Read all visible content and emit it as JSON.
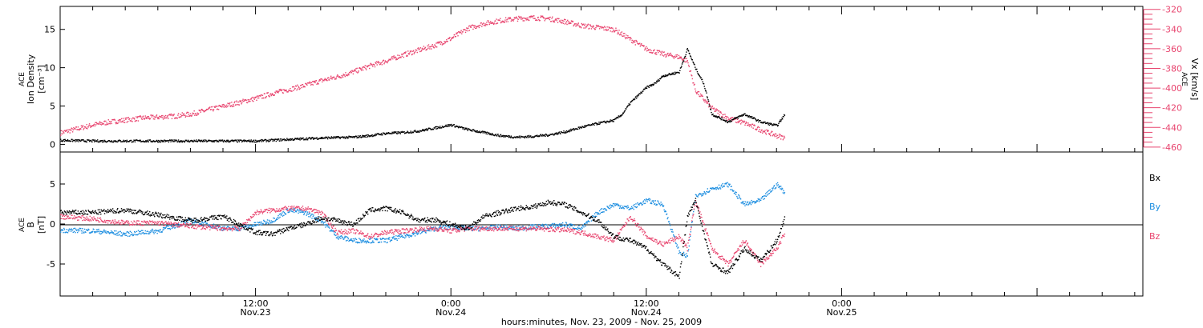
{
  "colors": {
    "black": "#000000",
    "pink": "#e8456f",
    "blue": "#1d8ee0"
  },
  "chart_data": [
    {
      "type": "scatter",
      "panel": "top",
      "ylabel_left": [
        "ACE",
        "Ion Density",
        "[cm⁻³]"
      ],
      "ylabel_right": [
        "ACE",
        "Vx [km/s]"
      ],
      "left_axis": {
        "ylim": [
          -1,
          18
        ],
        "ticks": [
          "0",
          "5",
          "10",
          "15"
        ],
        "tick_values": [
          0,
          5,
          10,
          15
        ]
      },
      "right_axis": {
        "ylim": [
          -465,
          -317
        ],
        "ticks": [
          "-320",
          "-340",
          "-360",
          "-380",
          "-400",
          "-420",
          "-440",
          "-460"
        ],
        "tick_values": [
          -320,
          -340,
          -360,
          -380,
          -400,
          -420,
          -440,
          -460
        ]
      },
      "series": [
        {
          "axis": "left",
          "color": "#000000",
          "points": [
            [
              0,
              0.6
            ],
            [
              2,
              0.5
            ],
            [
              4,
              0.5
            ],
            [
              6,
              0.5
            ],
            [
              8,
              0.5
            ],
            [
              10,
              0.5
            ],
            [
              12,
              0.5
            ],
            [
              14,
              0.7
            ],
            [
              16,
              0.9
            ],
            [
              18,
              1.0
            ],
            [
              19,
              1.2
            ],
            [
              20,
              1.5
            ],
            [
              21,
              1.6
            ],
            [
              22,
              1.8
            ],
            [
              23,
              2.2
            ],
            [
              24,
              2.6
            ],
            [
              25,
              2.0
            ],
            [
              26,
              1.6
            ],
            [
              27,
              1.2
            ],
            [
              28,
              1.0
            ],
            [
              29,
              1.1
            ],
            [
              30,
              1.3
            ],
            [
              31,
              1.7
            ],
            [
              32,
              2.3
            ],
            [
              33,
              2.8
            ],
            [
              34,
              3.2
            ],
            [
              34.5,
              4
            ],
            [
              35,
              5.5
            ],
            [
              36,
              7.5
            ],
            [
              36.5,
              8
            ],
            [
              37,
              9
            ],
            [
              38,
              9.5
            ],
            [
              38.5,
              12.5
            ],
            [
              39,
              10
            ],
            [
              39.5,
              8
            ],
            [
              40,
              4
            ],
            [
              41,
              3
            ],
            [
              42,
              4
            ],
            [
              43,
              3
            ],
            [
              44,
              2.5
            ],
            [
              44.5,
              4
            ]
          ]
        },
        {
          "axis": "right",
          "color": "#e8456f",
          "points": [
            [
              0,
              -445
            ],
            [
              1,
              -441
            ],
            [
              2,
              -437
            ],
            [
              3,
              -434
            ],
            [
              4,
              -432
            ],
            [
              5,
              -430
            ],
            [
              6,
              -429
            ],
            [
              7,
              -428
            ],
            [
              8,
              -426
            ],
            [
              9,
              -422
            ],
            [
              10,
              -418
            ],
            [
              11,
              -414
            ],
            [
              12,
              -410
            ],
            [
              13,
              -405
            ],
            [
              14,
              -401
            ],
            [
              15,
              -397
            ],
            [
              16,
              -392
            ],
            [
              17,
              -388
            ],
            [
              18,
              -383
            ],
            [
              19,
              -377
            ],
            [
              20,
              -372
            ],
            [
              21,
              -366
            ],
            [
              22,
              -361
            ],
            [
              23,
              -356
            ],
            [
              24,
              -349
            ],
            [
              25,
              -339
            ],
            [
              26,
              -334
            ],
            [
              27,
              -331
            ],
            [
              28,
              -329
            ],
            [
              29,
              -328
            ],
            [
              30,
              -329
            ],
            [
              31,
              -332
            ],
            [
              32,
              -336
            ],
            [
              33,
              -338
            ],
            [
              34,
              -340
            ],
            [
              35,
              -350
            ],
            [
              36,
              -360
            ],
            [
              37,
              -365
            ],
            [
              38,
              -368
            ],
            [
              38.5,
              -372
            ],
            [
              39,
              -402
            ],
            [
              40,
              -420
            ],
            [
              41,
              -430
            ],
            [
              42,
              -435
            ],
            [
              43,
              -442
            ],
            [
              44,
              -448
            ],
            [
              44.5,
              -450
            ]
          ]
        }
      ]
    },
    {
      "type": "scatter",
      "panel": "bottom",
      "ylabel_left": [
        "ACE",
        "B",
        "[nT]"
      ],
      "left_axis": {
        "ylim": [
          -9,
          9
        ],
        "ticks": [
          "5",
          "0",
          "-5"
        ],
        "tick_values": [
          5,
          0,
          -5
        ]
      },
      "legend": [
        "Bx",
        "By",
        "Bz"
      ],
      "legend_placement": "right",
      "series": [
        {
          "name": "Bx",
          "color": "#000000",
          "points": [
            [
              0,
              1.5
            ],
            [
              2,
              1.5
            ],
            [
              4,
              1.8
            ],
            [
              6,
              1.2
            ],
            [
              8,
              0.5
            ],
            [
              10,
              1.0
            ],
            [
              12,
              -1.0
            ],
            [
              13,
              -1.2
            ],
            [
              14,
              -0.5
            ],
            [
              15,
              0
            ],
            [
              16,
              0.8
            ],
            [
              17,
              0.5
            ],
            [
              18,
              0
            ],
            [
              19,
              1.8
            ],
            [
              20,
              2.0
            ],
            [
              21,
              1.5
            ],
            [
              22,
              0.5
            ],
            [
              23,
              0.6
            ],
            [
              24,
              0
            ],
            [
              25,
              -0.5
            ],
            [
              26,
              1.0
            ],
            [
              27,
              1.5
            ],
            [
              28,
              2.0
            ],
            [
              29,
              2.2
            ],
            [
              30,
              2.8
            ],
            [
              31,
              2.5
            ],
            [
              32,
              1.5
            ],
            [
              33,
              0.5
            ],
            [
              34,
              -1.5
            ],
            [
              35,
              -2.0
            ],
            [
              36,
              -3
            ],
            [
              37,
              -5
            ],
            [
              38,
              -6.5
            ],
            [
              38.5,
              1
            ],
            [
              39,
              3
            ],
            [
              40,
              -5
            ],
            [
              41,
              -6
            ],
            [
              42,
              -3
            ],
            [
              43,
              -4.5
            ],
            [
              44,
              -2
            ],
            [
              44.5,
              1
            ]
          ]
        },
        {
          "name": "By",
          "color": "#1d8ee0",
          "points": [
            [
              0,
              -0.7
            ],
            [
              2,
              -0.8
            ],
            [
              4,
              -1.2
            ],
            [
              6,
              -0.8
            ],
            [
              8,
              0.5
            ],
            [
              10,
              -0.5
            ],
            [
              11,
              -0.5
            ],
            [
              12,
              0
            ],
            [
              13,
              0.5
            ],
            [
              14,
              1.8
            ],
            [
              15,
              1.5
            ],
            [
              16,
              0.5
            ],
            [
              17,
              -1.5
            ],
            [
              18,
              -2.0
            ],
            [
              19,
              -2.0
            ],
            [
              20,
              -2.0
            ],
            [
              21,
              -1.5
            ],
            [
              22,
              -1.0
            ],
            [
              23,
              -0.5
            ],
            [
              24,
              -0.3
            ],
            [
              25,
              -0.5
            ],
            [
              26,
              -0.5
            ],
            [
              27,
              -0.3
            ],
            [
              28,
              -0.5
            ],
            [
              29,
              -0.3
            ],
            [
              30,
              -0.2
            ],
            [
              31,
              0
            ],
            [
              32,
              -0.5
            ],
            [
              33,
              1.5
            ],
            [
              34,
              2.5
            ],
            [
              35,
              2.0
            ],
            [
              36,
              3
            ],
            [
              37,
              2.5
            ],
            [
              38,
              -3.5
            ],
            [
              38.5,
              -4
            ],
            [
              39,
              3.5
            ],
            [
              40,
              4.5
            ],
            [
              41,
              5
            ],
            [
              42,
              2.5
            ],
            [
              43,
              3
            ],
            [
              44,
              5
            ],
            [
              44.5,
              4
            ]
          ]
        },
        {
          "name": "Bz",
          "color": "#e8456f",
          "points": [
            [
              0,
              1.0
            ],
            [
              2,
              0.7
            ],
            [
              4,
              0.2
            ],
            [
              6,
              0.2
            ],
            [
              8,
              -0.2
            ],
            [
              10,
              -0.5
            ],
            [
              11,
              -0.5
            ],
            [
              12,
              1.5
            ],
            [
              13,
              1.8
            ],
            [
              14,
              2.0
            ],
            [
              15,
              2.0
            ],
            [
              16,
              1.5
            ],
            [
              17,
              -1.0
            ],
            [
              18,
              -0.8
            ],
            [
              19,
              -1.5
            ],
            [
              20,
              -1.0
            ],
            [
              21,
              -0.8
            ],
            [
              22,
              -0.6
            ],
            [
              23,
              -0.5
            ],
            [
              24,
              -0.8
            ],
            [
              25,
              -0.5
            ],
            [
              26,
              -0.5
            ],
            [
              27,
              -0.5
            ],
            [
              28,
              -0.5
            ],
            [
              29,
              -0.5
            ],
            [
              30,
              -0.6
            ],
            [
              31,
              -0.7
            ],
            [
              32,
              -1.0
            ],
            [
              33,
              -1.5
            ],
            [
              34,
              -2.0
            ],
            [
              35,
              1.0
            ],
            [
              36,
              -1.5
            ],
            [
              37,
              -2.5
            ],
            [
              38,
              -1.5
            ],
            [
              38.5,
              -3
            ],
            [
              39,
              3
            ],
            [
              40,
              -3
            ],
            [
              41,
              -5
            ],
            [
              42,
              -2
            ],
            [
              43,
              -5
            ],
            [
              44,
              -3
            ],
            [
              44.5,
              -1
            ]
          ]
        }
      ]
    }
  ],
  "x_axis": {
    "major_ticks": [
      {
        "time": "12:00",
        "date": "Nov.23",
        "hour": 12
      },
      {
        "time": "0:00",
        "date": "Nov.24",
        "hour": 24
      },
      {
        "time": "12:00",
        "date": "Nov.24",
        "hour": 36
      },
      {
        "time": "0:00",
        "date": "Nov.25",
        "hour": 48
      }
    ],
    "label": "hours:minutes, Nov. 23, 2009 - Nov. 25, 2009"
  }
}
